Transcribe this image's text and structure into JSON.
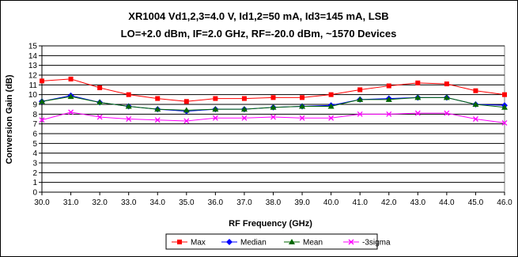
{
  "chart_data": {
    "type": "line",
    "title_line1": "XR1004 Vd1,2,3=4.0 V, Id1,2=50 mA, Id3=145 mA, LSB",
    "title_line2": "LO=+2.0 dBm, IF=2.0 GHz, RF=-20.0 dBm, ~1570 Devices",
    "xlabel": "RF Frequency (GHz)",
    "ylabel": "Conversion Gain (dB)",
    "x": [
      30.0,
      31.0,
      32.0,
      33.0,
      34.0,
      35.0,
      36.0,
      37.0,
      38.0,
      39.0,
      40.0,
      41.0,
      42.0,
      43.0,
      44.0,
      45.0,
      46.0
    ],
    "x_tick_labels": [
      "30.0",
      "31.0",
      "32.0",
      "33.0",
      "34.0",
      "35.0",
      "36.0",
      "37.0",
      "38.0",
      "39.0",
      "40.0",
      "41.0",
      "42.0",
      "43.0",
      "44.0",
      "45.0",
      "46.0"
    ],
    "y_ticks": [
      0,
      1,
      2,
      3,
      4,
      5,
      6,
      7,
      8,
      9,
      10,
      11,
      12,
      13,
      14,
      15
    ],
    "xlim": [
      30,
      46
    ],
    "ylim": [
      0,
      15
    ],
    "grid": "horizontal",
    "legend_position": "bottom",
    "series": [
      {
        "name": "Max",
        "color": "#ff0000",
        "marker": "square",
        "values": [
          11.4,
          11.6,
          10.7,
          10.0,
          9.6,
          9.3,
          9.6,
          9.6,
          9.7,
          9.7,
          10.0,
          10.5,
          10.9,
          11.2,
          11.1,
          10.4,
          10.0
        ]
      },
      {
        "name": "Median",
        "color": "#0000ff",
        "marker": "diamond",
        "values": [
          9.3,
          9.9,
          9.2,
          8.8,
          8.5,
          8.3,
          8.5,
          8.5,
          8.7,
          8.8,
          8.9,
          9.5,
          9.6,
          9.7,
          9.7,
          9.0,
          8.9
        ]
      },
      {
        "name": "Mean",
        "color": "#006600",
        "marker": "triangle",
        "values": [
          9.3,
          9.8,
          9.2,
          8.8,
          8.5,
          8.4,
          8.5,
          8.5,
          8.7,
          8.8,
          8.8,
          9.5,
          9.5,
          9.7,
          9.7,
          9.0,
          8.7
        ]
      },
      {
        "name": "-3sigma",
        "color": "#ff00ff",
        "marker": "x",
        "values": [
          7.4,
          8.2,
          7.7,
          7.5,
          7.4,
          7.3,
          7.6,
          7.6,
          7.7,
          7.6,
          7.6,
          8.0,
          8.0,
          8.1,
          8.1,
          7.5,
          7.1
        ]
      }
    ]
  }
}
